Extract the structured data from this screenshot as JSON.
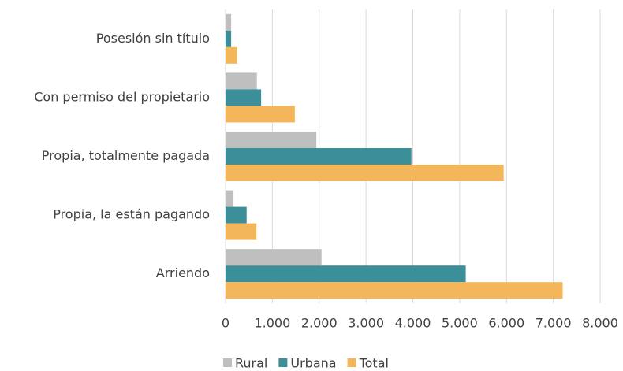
{
  "chart_data": {
    "type": "hbar",
    "categories": [
      "Posesión sin título",
      "Con permiso del propietario",
      "Propia, totalmente pagada",
      "Propia, la están pagando",
      "Arriendo"
    ],
    "series": [
      {
        "name": "Rural",
        "color": "#bfbfbf",
        "values": [
          120,
          670,
          1940,
          170,
          2050
        ]
      },
      {
        "name": "Urbana",
        "color": "#3a8f98",
        "values": [
          120,
          760,
          3970,
          450,
          5130
        ]
      },
      {
        "name": "Total",
        "color": "#f4b65a",
        "values": [
          250,
          1480,
          5940,
          660,
          7200
        ]
      }
    ],
    "xlim": [
      0,
      8000
    ],
    "xticks": [
      0,
      {
        "value": 1000,
        "label": "1.000"
      },
      {
        "value": 2000,
        "label": "2.000"
      },
      {
        "value": 3000,
        "label": "3.000"
      },
      {
        "value": 4000,
        "label": "4.000"
      },
      {
        "value": 5000,
        "label": "5.000"
      },
      {
        "value": 6000,
        "label": "6.000"
      },
      {
        "value": 7000,
        "label": "7.000"
      },
      {
        "value": 8000,
        "label": "8.000"
      }
    ],
    "grid": true,
    "legend": "bottom"
  }
}
